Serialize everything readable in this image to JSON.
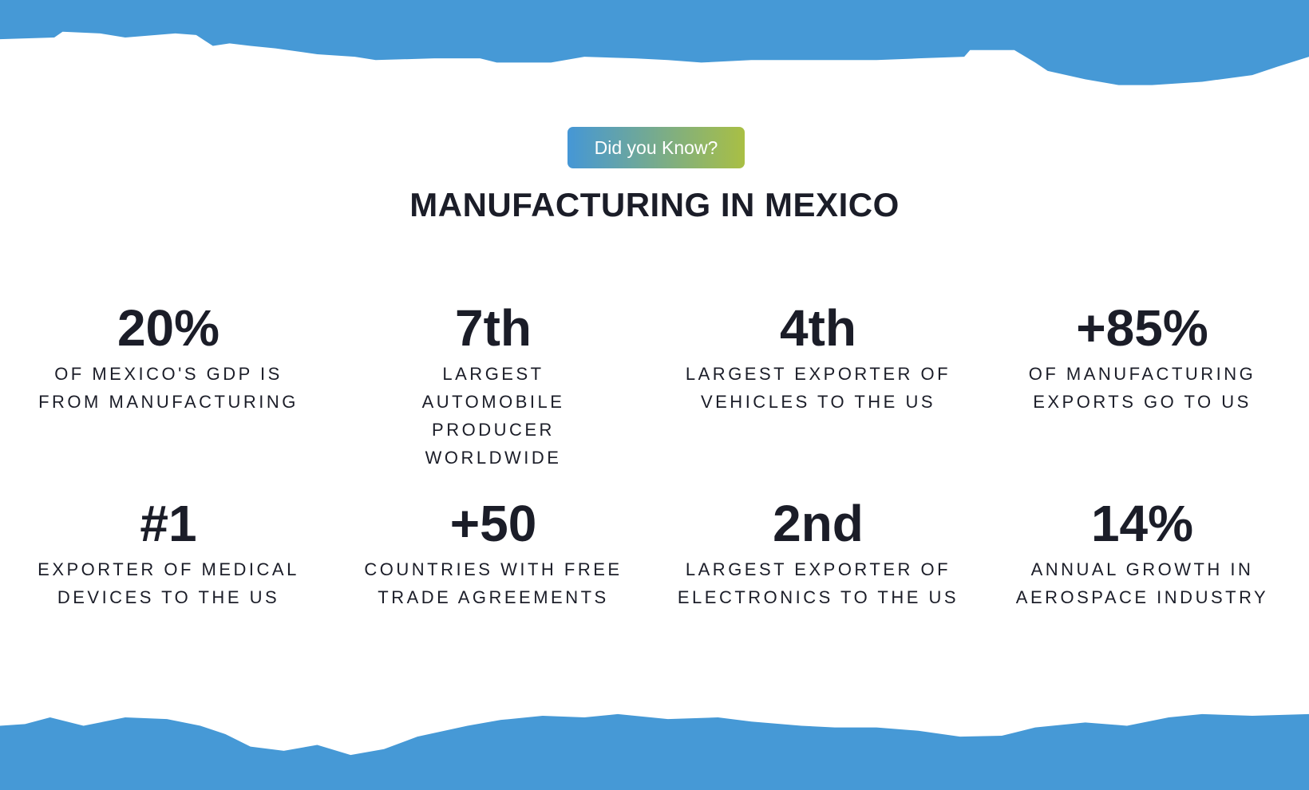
{
  "colors": {
    "band": "#4699d6",
    "badge_start": "#4597d6",
    "badge_end": "#a9bf44",
    "text": "#1b1d28"
  },
  "badge": "Did you Know?",
  "title": "MANUFACTURING IN MEXICO",
  "stats": [
    {
      "value": "20%",
      "label": "OF MEXICO'S GDP IS FROM MANUFACTURING"
    },
    {
      "value": "7th",
      "label": "LARGEST AUTOMOBILE PRODUCER WORLDWIDE"
    },
    {
      "value": "4th",
      "label": "LARGEST EXPORTER OF VEHICLES TO THE US"
    },
    {
      "value": "+85%",
      "label": "OF MANUFACTURING EXPORTS GO TO US"
    },
    {
      "value": "#1",
      "label": "EXPORTER OF MEDICAL DEVICES TO THE US"
    },
    {
      "value": "+50",
      "label": "COUNTRIES WITH FREE TRADE AGREEMENTS"
    },
    {
      "value": "2nd",
      "label": "LARGEST EXPORTER OF ELECTRONICS TO THE US"
    },
    {
      "value": "14%",
      "label": "ANNUAL GROWTH IN AEROSPACE INDUSTRY"
    }
  ]
}
